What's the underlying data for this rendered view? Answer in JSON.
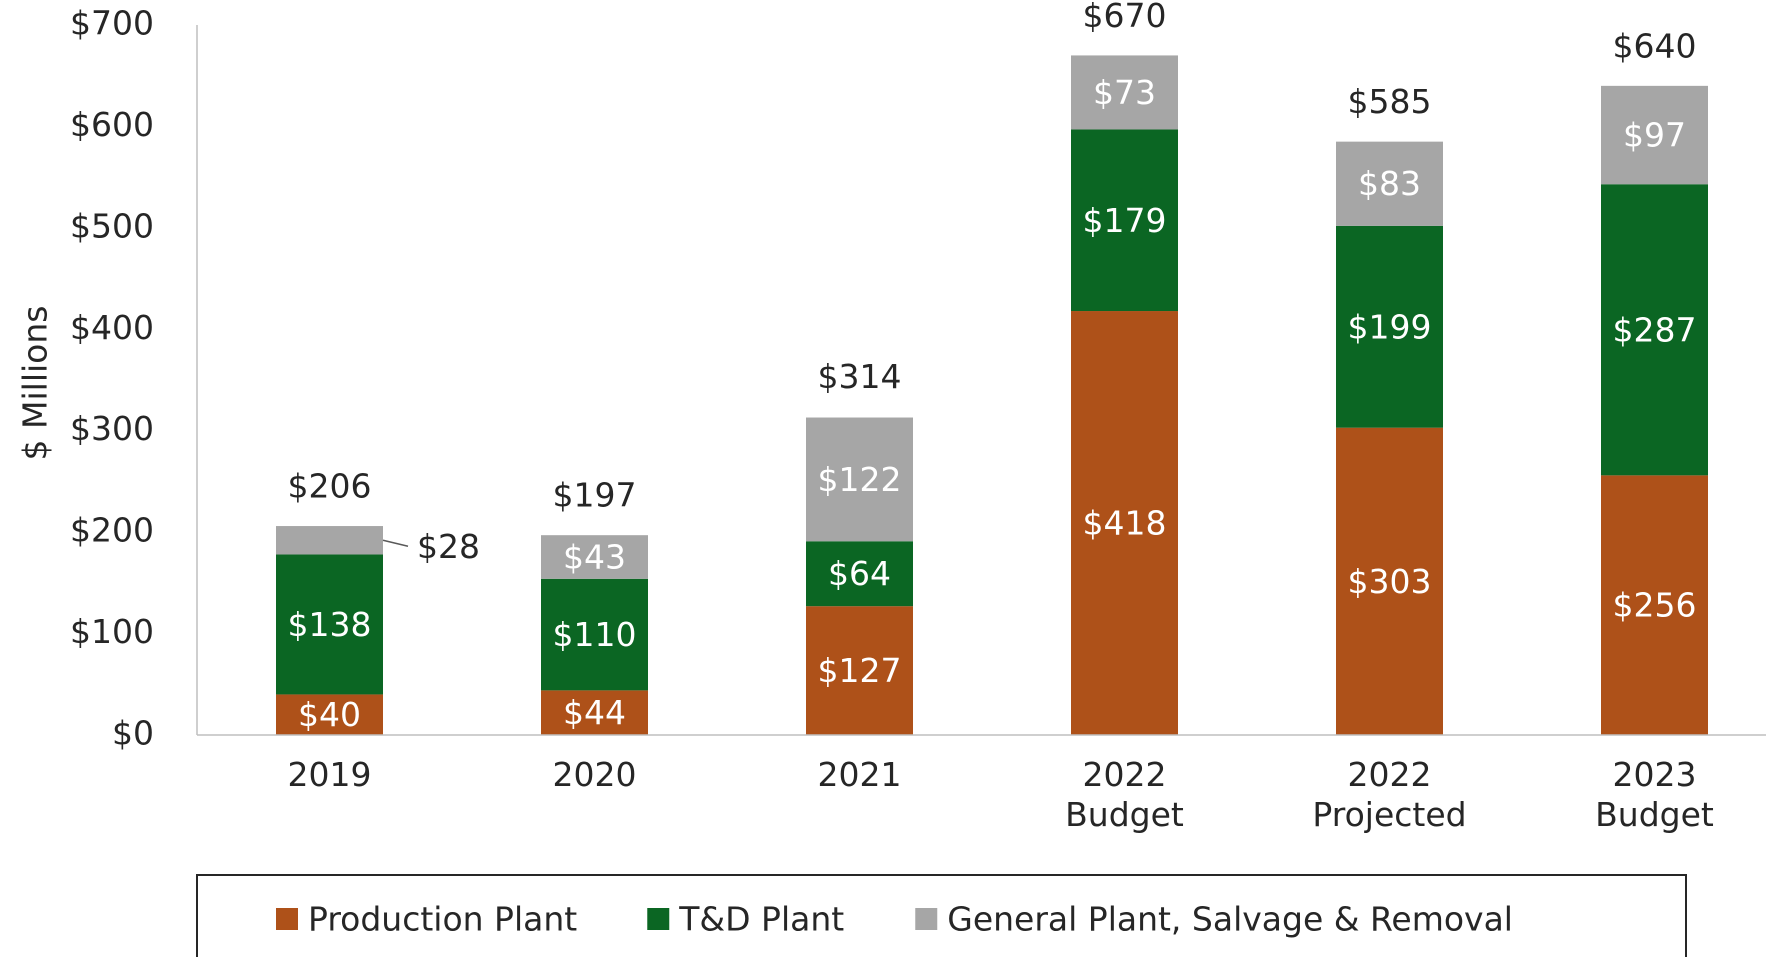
{
  "chart_data": {
    "type": "stacked_bar",
    "ylabel": "$ Millions",
    "categories": [
      "2019",
      "2020",
      "2021",
      "2022 Budget",
      "2022 Projected",
      "2023 Budget"
    ],
    "series": [
      {
        "name": "Production Plant",
        "color": "#ae5119",
        "values": [
          40,
          44,
          127,
          418,
          303,
          256
        ],
        "value_labels": [
          "$40",
          "$44",
          "$127",
          "$418",
          "$303",
          "$256"
        ]
      },
      {
        "name": "T&D Plant",
        "color": "#0b6623",
        "values": [
          138,
          110,
          64,
          179,
          199,
          287
        ],
        "value_labels": [
          "$138",
          "$110",
          "$64",
          "$179",
          "$199",
          "$287"
        ]
      },
      {
        "name": "General Plant, Salvage & Removal",
        "color": "#a6a6a6",
        "values": [
          28,
          43,
          122,
          73,
          83,
          97
        ],
        "value_labels": [
          "$28",
          "$43",
          "$122",
          "$73",
          "$83",
          "$97"
        ]
      }
    ],
    "totals": [
      206,
      197,
      314,
      670,
      585,
      640
    ],
    "total_labels": [
      "$206",
      "$197",
      "$314",
      "$670",
      "$585",
      "$640"
    ],
    "ylim": [
      0,
      700
    ],
    "yticks": [
      {
        "value": 0,
        "label": "$0"
      },
      {
        "value": 100,
        "label": "$100"
      },
      {
        "value": 200,
        "label": "$200"
      },
      {
        "value": 300,
        "label": "$300"
      },
      {
        "value": 400,
        "label": "$400"
      },
      {
        "value": 500,
        "label": "$500"
      },
      {
        "value": 600,
        "label": "$600"
      },
      {
        "value": 700,
        "label": "$700"
      }
    ],
    "legend": "bottom"
  }
}
